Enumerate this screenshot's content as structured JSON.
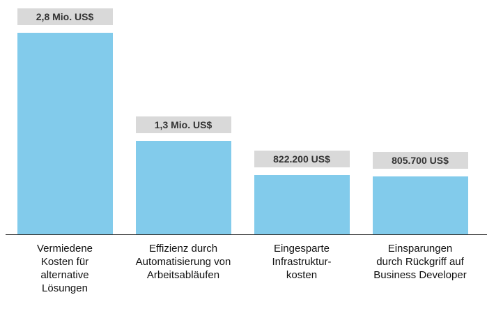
{
  "chart_data": {
    "type": "bar",
    "categories": [
      "Vermiedene\nKosten für\nalternative\nLösungen",
      "Effizienz durch\nAutomatisierung von\nArbeitsabläufen",
      "Eingesparte\nInfrastruktur-\nkosten",
      "Einsparungen\ndurch Rückgriff auf\nBusiness Developer"
    ],
    "values": [
      2800000,
      1300000,
      822200,
      805700
    ],
    "value_labels": [
      "2,8 Mio. US$",
      "1,3 Mio. US$",
      "822.200 US$",
      "805.700 US$"
    ],
    "color": "#82cbeb"
  }
}
